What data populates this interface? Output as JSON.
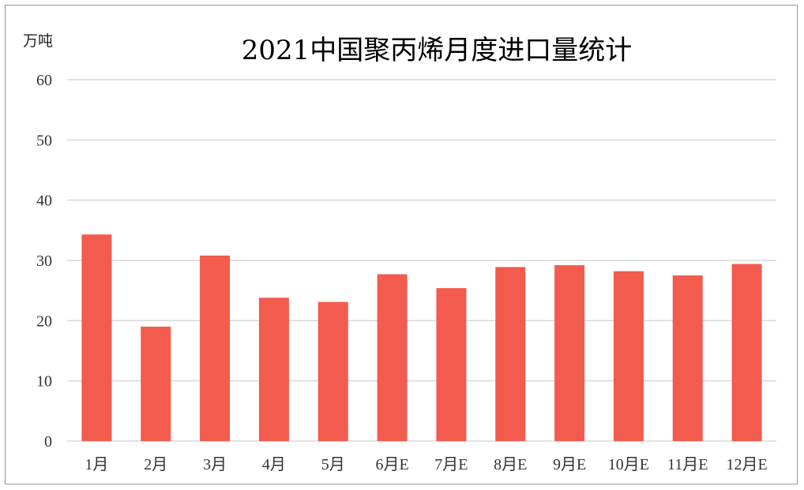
{
  "chart_data": {
    "type": "bar",
    "title": "2021中国聚丙烯月度进口量统计",
    "ylabel": "万吨",
    "xlabel": "",
    "ylim": [
      0,
      60
    ],
    "yticks": [
      0,
      10,
      20,
      30,
      40,
      50,
      60
    ],
    "grid": true,
    "categories": [
      "1月",
      "2月",
      "3月",
      "4月",
      "5月",
      "6月E",
      "7月E",
      "8月E",
      "9月E",
      "10月E",
      "11月E",
      "12月E"
    ],
    "values": [
      34.3,
      19.0,
      30.8,
      23.8,
      23.1,
      27.7,
      25.4,
      28.9,
      29.2,
      28.2,
      27.5,
      29.4
    ],
    "bar_color": "#f25b4e"
  }
}
